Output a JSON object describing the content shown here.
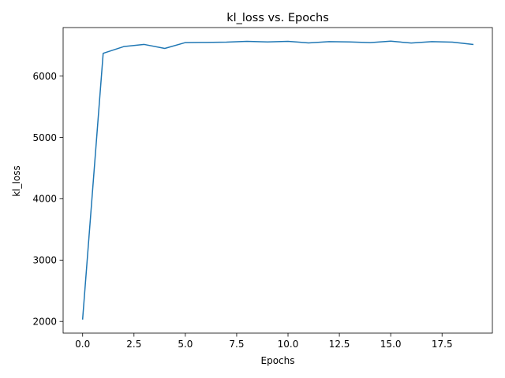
{
  "chart_data": {
    "type": "line",
    "title": "kl_loss vs. Epochs",
    "xlabel": "Epochs",
    "ylabel": "kl_loss",
    "xlim": [
      -0.95,
      19.95
    ],
    "ylim": [
      1810,
      6790
    ],
    "x_ticks": [
      0.0,
      2.5,
      5.0,
      7.5,
      10.0,
      12.5,
      15.0,
      17.5
    ],
    "x_tick_labels": [
      "0.0",
      "2.5",
      "5.0",
      "7.5",
      "10.0",
      "12.5",
      "15.0",
      "17.5"
    ],
    "y_ticks": [
      2000,
      3000,
      4000,
      5000,
      6000
    ],
    "y_tick_labels": [
      "2000",
      "3000",
      "4000",
      "5000",
      "6000"
    ],
    "grid": false,
    "series": [
      {
        "color": "#1f77b4",
        "x": [
          0,
          1,
          2,
          3,
          4,
          5,
          6,
          7,
          8,
          9,
          10,
          11,
          12,
          13,
          14,
          15,
          16,
          17,
          18,
          19
        ],
        "y": [
          2040,
          6370,
          6480,
          6515,
          6450,
          6545,
          6548,
          6552,
          6565,
          6555,
          6565,
          6540,
          6560,
          6555,
          6545,
          6568,
          6538,
          6560,
          6553,
          6515
        ]
      }
    ]
  }
}
